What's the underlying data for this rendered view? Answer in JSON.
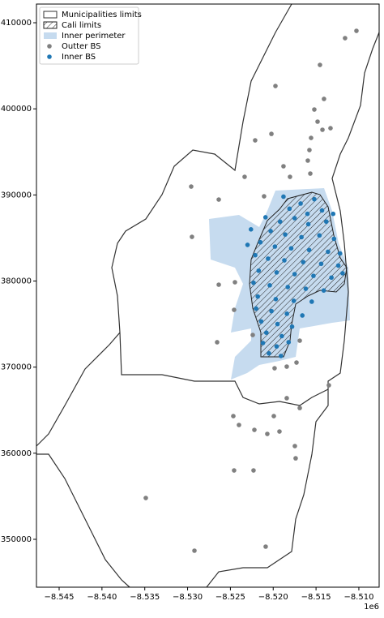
{
  "chart_data": {
    "type": "scatter",
    "layers": [
      {
        "name": "Municipalities limits",
        "color": "#333333"
      },
      {
        "name": "Cali limits",
        "color": "#222222"
      },
      {
        "name": "Inner perimeter",
        "color": "#c6dbef"
      }
    ],
    "series": [
      {
        "name": "Outter BS",
        "color": "#808080",
        "x": [
          -8510280,
          -8511610,
          -8514540,
          -8519740,
          -8515200,
          -8514070,
          -8514820,
          -8514250,
          -8515580,
          -8513310,
          -8520210,
          -8522110,
          -8515770,
          -8515960,
          -8518800,
          -8518040,
          -8515670,
          -8523340,
          -8529580,
          -8526360,
          -8521070,
          -8529490,
          -8526360,
          -8524470,
          -8524570,
          -8526550,
          -8522390,
          -8516900,
          -8517280,
          -8519840,
          -8518420,
          -8513500,
          -8518420,
          -8516900,
          -8524660,
          -8524000,
          -8519930,
          -8522200,
          -8520690,
          -8519270,
          -8517470,
          -8517380,
          -8524570,
          -8522300,
          -8534880,
          -8520880,
          -8529200
        ],
        "values": [
          409060,
          408210,
          405100,
          402650,
          399920,
          401150,
          398510,
          397570,
          396620,
          397750,
          397090,
          396340,
          395210,
          393990,
          393330,
          392100,
          392480,
          392100,
          390970,
          389460,
          389840,
          385130,
          379570,
          379860,
          376650,
          372890,
          373730,
          373070,
          370530,
          369870,
          370060,
          367890,
          366390,
          365250,
          364310,
          363280,
          364310,
          362710,
          362240,
          362520,
          360830,
          359410,
          358000,
          358000,
          354800,
          349150,
          348680
        ]
      },
      {
        "name": "Inner BS",
        "color": "#1f77b4",
        "x": [
          -8515200,
          -8516800,
          -8518100,
          -8514300,
          -8517500,
          -8519200,
          -8515900,
          -8513800,
          -8520300,
          -8518600,
          -8516700,
          -8514600,
          -8512900,
          -8521500,
          -8519800,
          -8517900,
          -8515800,
          -8513600,
          -8522100,
          -8520600,
          -8518700,
          -8516500,
          -8514400,
          -8512400,
          -8521700,
          -8519600,
          -8517500,
          -8515300,
          -8513200,
          -8511900,
          -8522300,
          -8520400,
          -8518300,
          -8516200,
          -8514100,
          -8521800,
          -8519700,
          -8517600,
          -8515500,
          -8522000,
          -8520200,
          -8518400,
          -8516600,
          -8521400,
          -8519500,
          -8517800,
          -8520800,
          -8519000,
          -8521200,
          -8519600,
          -8518200,
          -8520500,
          -8519100,
          -8518800,
          -8516000,
          -8520900,
          -8513000,
          -8512200,
          -8523000,
          -8522600
        ],
        "values": [
          389500,
          389000,
          388400,
          388200,
          387300,
          386900,
          386600,
          386900,
          385800,
          385400,
          385100,
          385300,
          384900,
          384500,
          384000,
          383800,
          383600,
          383400,
          383000,
          382600,
          382400,
          382200,
          382000,
          381800,
          381200,
          381000,
          380800,
          380600,
          380400,
          380900,
          379800,
          379500,
          379300,
          379100,
          378900,
          378200,
          377900,
          377700,
          377600,
          376800,
          376500,
          376200,
          376000,
          375300,
          375000,
          374700,
          374000,
          373600,
          372800,
          372400,
          372900,
          371600,
          371300,
          389800,
          387800,
          387400,
          387800,
          383200,
          384200,
          386000
        ]
      }
    ],
    "xlim": [
      -8547650,
      -8507630
    ],
    "xticks": [
      {
        "value": -8545000,
        "label": "−8.545"
      },
      {
        "value": -8540000,
        "label": "−8.540"
      },
      {
        "value": -8535000,
        "label": "−8.535"
      },
      {
        "value": -8530000,
        "label": "−8.530"
      },
      {
        "value": -8525000,
        "label": "−8.525"
      },
      {
        "value": -8520000,
        "label": "−8.520"
      },
      {
        "value": -8515000,
        "label": "−8.515"
      },
      {
        "value": -8510000,
        "label": "−8.510"
      }
    ],
    "x_offset_label": "1e6",
    "ylim": [
      344440,
      412170
    ],
    "yticks": [
      350000,
      360000,
      370000,
      380000,
      390000,
      400000,
      410000
    ],
    "legend": "upper left"
  }
}
